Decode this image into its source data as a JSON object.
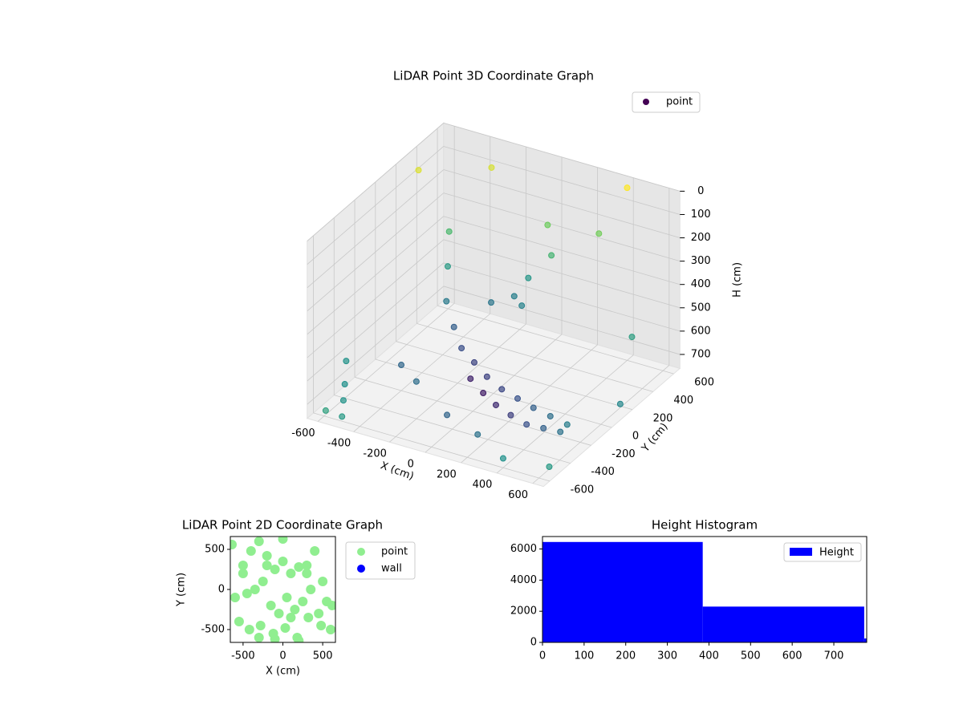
{
  "chart_data": [
    {
      "type": "scatter3d",
      "title": "LiDAR Point 3D Coordinate Graph",
      "x_label": "X (cm)",
      "y_label": "Y (cm)",
      "z_label": "H (cm)",
      "xlim": [
        -660,
        660
      ],
      "ylim": [
        -660,
        660
      ],
      "zlim": [
        760,
        0
      ],
      "xticks": [
        -600,
        -400,
        -200,
        0,
        200,
        400,
        600
      ],
      "yticks": [
        -600,
        -400,
        -200,
        0,
        200,
        400,
        600
      ],
      "zticks": [
        0,
        100,
        200,
        300,
        400,
        500,
        600,
        700
      ],
      "colormap": "viridis",
      "legend": "upper right",
      "series": [
        {
          "name": "point",
          "color": "#440154",
          "x": [
            -450,
            -400,
            -350,
            -250,
            -150,
            -50,
            50,
            150,
            250,
            350,
            450,
            550,
            -100,
            0,
            100,
            200,
            300,
            400,
            500,
            100,
            150,
            50,
            0,
            -100,
            100,
            -600,
            -550,
            -650,
            -500,
            -620,
            400,
            600,
            650,
            -300,
            400,
            -200,
            0,
            200,
            300,
            -400,
            600,
            -650
          ],
          "y": [
            350,
            250,
            150,
            50,
            -50,
            -100,
            -150,
            -180,
            -200,
            -220,
            -230,
            -240,
            -50,
            -100,
            -150,
            -180,
            -200,
            -210,
            -220,
            350,
            300,
            250,
            200,
            150,
            100,
            -400,
            -500,
            -300,
            -600,
            -550,
            -600,
            -500,
            100,
            500,
            600,
            -400,
            -450,
            -500,
            500,
            -200,
            300,
            400
          ],
          "z": [
            300,
            400,
            500,
            550,
            580,
            600,
            620,
            640,
            650,
            660,
            670,
            680,
            700,
            720,
            730,
            740,
            750,
            740,
            730,
            150,
            250,
            350,
            420,
            450,
            400,
            700,
            720,
            650,
            740,
            760,
            720,
            750,
            700,
            50,
            20,
            600,
            680,
            700,
            200,
            650,
            500,
            100
          ]
        }
      ]
    },
    {
      "type": "scatter",
      "title": "LiDAR Point 2D Coordinate Graph",
      "x_label": "X (cm)",
      "y_label": "Y (cm)",
      "xlim": [
        -660,
        660
      ],
      "ylim": [
        -660,
        660
      ],
      "xticks": [
        -500,
        0,
        500
      ],
      "yticks": [
        -500,
        0,
        500
      ],
      "legend": "outside right",
      "series": [
        {
          "name": "point",
          "color": "#90ee90",
          "x": [
            -640,
            -500,
            -400,
            -300,
            -200,
            -100,
            0,
            100,
            200,
            300,
            400,
            550,
            620,
            -600,
            -450,
            -350,
            -250,
            -150,
            -50,
            50,
            150,
            250,
            350,
            450,
            -550,
            -420,
            -280,
            -120,
            30,
            180,
            320,
            480,
            600,
            -500,
            -300,
            -100,
            100,
            300,
            500,
            -200,
            0,
            200
          ],
          "y": [
            560,
            200,
            480,
            600,
            300,
            250,
            630,
            200,
            280,
            300,
            480,
            -150,
            -200,
            -100,
            -50,
            0,
            100,
            -200,
            -300,
            -100,
            -250,
            -150,
            0,
            -300,
            -400,
            -500,
            -450,
            -550,
            -480,
            -600,
            -350,
            -450,
            -500,
            300,
            -600,
            -620,
            -350,
            200,
            100,
            420,
            350,
            -640
          ]
        },
        {
          "name": "wall",
          "color": "#0000ff",
          "x": [],
          "y": []
        }
      ]
    },
    {
      "type": "histogram",
      "title": "Height Histogram",
      "bins": [
        0,
        385,
        773,
        779
      ],
      "counts": [
        6450,
        2300,
        250
      ],
      "color": "#0000ff",
      "series_name": "Height",
      "legend": "upper right",
      "xlim": [
        0,
        779
      ],
      "ylim": [
        0,
        6800
      ],
      "xticks": [
        0,
        100,
        200,
        300,
        400,
        500,
        600,
        700
      ],
      "yticks": [
        0,
        2000,
        4000,
        6000
      ]
    }
  ]
}
